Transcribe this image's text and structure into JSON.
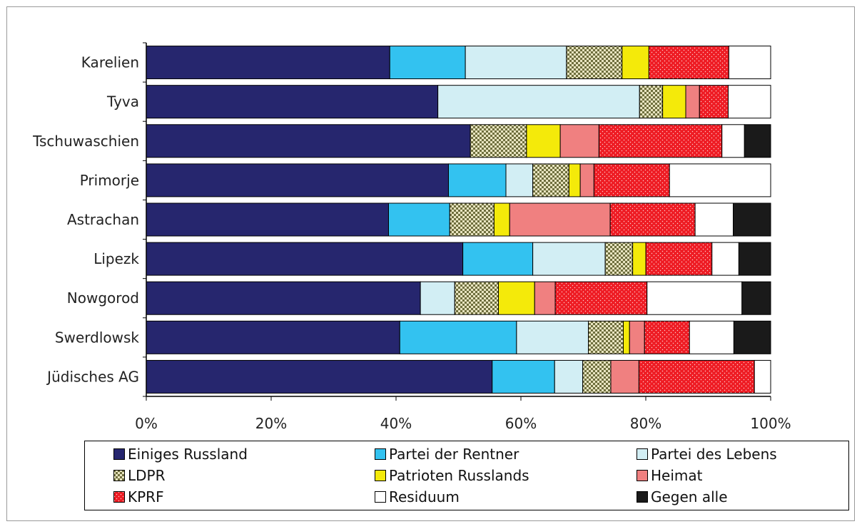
{
  "chart_data": {
    "type": "bar",
    "orientation": "horizontal",
    "stacked": "percent",
    "categories": [
      "Karelien",
      "Tyva",
      "Tschuwaschien",
      "Primorje",
      "Astrachan",
      "Lipezk",
      "Nowgorod",
      "Swerdlowsk",
      "Jüdisches AG"
    ],
    "xlim": [
      0,
      100
    ],
    "xticks": [
      "0%",
      "20%",
      "40%",
      "60%",
      "80%",
      "100%"
    ],
    "legend_position": "bottom",
    "grid": false,
    "series": [
      {
        "name": "Einiges Russland",
        "color": "#26266e",
        "pattern": "solid",
        "values": [
          39.0,
          46.7,
          51.9,
          48.4,
          38.8,
          50.7,
          43.9,
          40.6,
          55.4
        ]
      },
      {
        "name": "Partei der Rentner",
        "color": "#33c2f0",
        "pattern": "solid",
        "values": [
          12.1,
          0.0,
          0.0,
          9.2,
          9.8,
          11.2,
          0.0,
          18.7,
          10.0
        ]
      },
      {
        "name": "Partei des Lebens",
        "color": "#d2eef4",
        "pattern": "solid",
        "values": [
          16.2,
          32.3,
          0.0,
          4.3,
          0.0,
          11.6,
          5.5,
          11.5,
          4.5
        ]
      },
      {
        "name": "LDPR",
        "color": "#8a8a58",
        "pattern": "checker",
        "values": [
          8.9,
          3.7,
          9.0,
          5.8,
          7.1,
          4.4,
          7.0,
          5.6,
          4.5
        ]
      },
      {
        "name": "Patrioten Russlands",
        "color": "#f4ea0a",
        "pattern": "solid",
        "values": [
          4.3,
          3.7,
          5.4,
          1.8,
          2.5,
          2.1,
          5.8,
          1.0,
          0.0
        ]
      },
      {
        "name": "Heimat",
        "color": "#f08080",
        "pattern": "solid",
        "values": [
          0.0,
          2.2,
          6.2,
          2.2,
          16.1,
          0.0,
          3.3,
          2.4,
          4.5
        ]
      },
      {
        "name": "KPRF",
        "color": "#ee1c24",
        "pattern": "dots",
        "values": [
          12.8,
          4.6,
          19.7,
          12.1,
          13.6,
          10.6,
          14.7,
          7.2,
          18.5
        ]
      },
      {
        "name": "Residuum",
        "color": "#ffffff",
        "pattern": "solid",
        "values": [
          6.7,
          6.8,
          3.6,
          16.2,
          6.1,
          4.3,
          15.2,
          7.1,
          2.6
        ]
      },
      {
        "name": "Gegen alle",
        "color": "#1a1a1a",
        "pattern": "solid",
        "values": [
          0.0,
          0.0,
          4.2,
          0.0,
          6.0,
          5.1,
          4.6,
          5.9,
          0.0
        ]
      }
    ]
  }
}
